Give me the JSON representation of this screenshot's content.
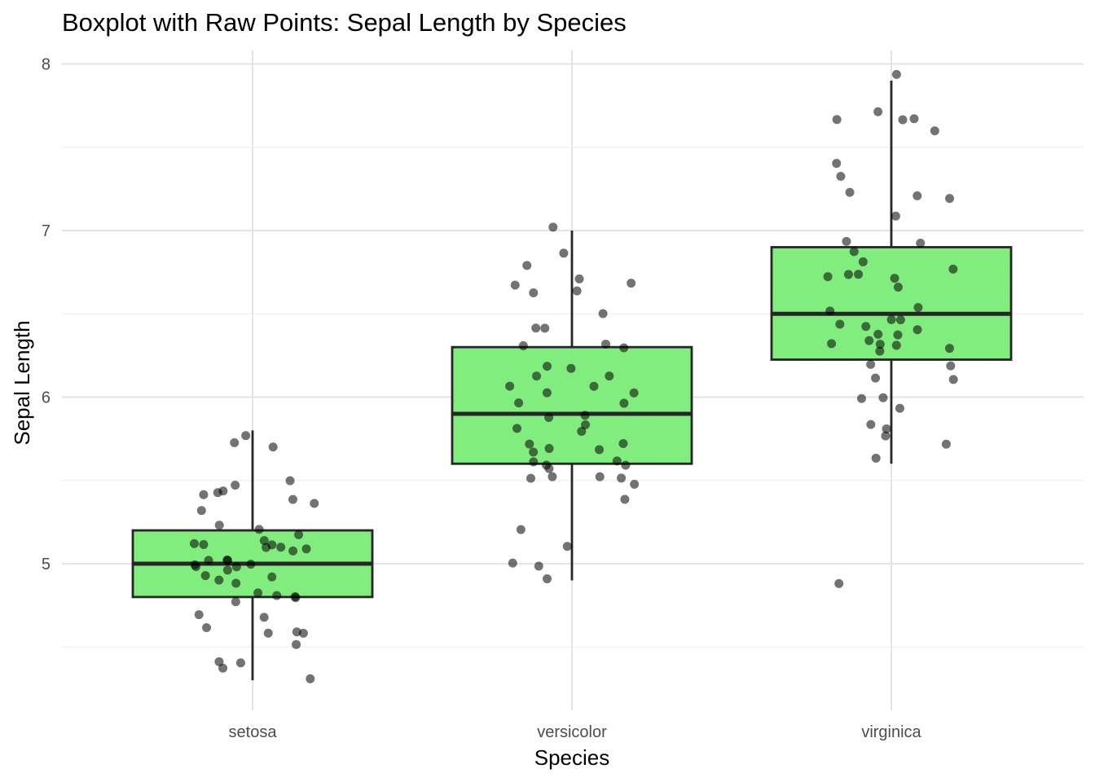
{
  "chart_data": {
    "type": "boxplot",
    "title": "Boxplot with Raw Points: Sepal Length by Species",
    "xlabel": "Species",
    "ylabel": "Sepal Length",
    "ylim": [
      4.3,
      7.9
    ],
    "yticks": [
      5,
      6,
      7,
      8
    ],
    "yticks_minor": [
      4.5,
      5.5,
      6.5,
      7.5
    ],
    "grid": true,
    "legend": "none",
    "categories": [
      "setosa",
      "versicolor",
      "virginica"
    ],
    "boxes": [
      {
        "category": "setosa",
        "whisker_low": 4.3,
        "q1": 4.8,
        "median": 5.0,
        "q3": 5.2,
        "whisker_high": 5.8
      },
      {
        "category": "versicolor",
        "whisker_low": 4.9,
        "q1": 5.6,
        "median": 5.9,
        "q3": 6.3,
        "whisker_high": 7.0
      },
      {
        "category": "virginica",
        "whisker_low": 5.6,
        "q1": 6.225,
        "median": 6.5,
        "q3": 6.9,
        "whisker_high": 7.9
      }
    ],
    "points": [
      {
        "category": "setosa",
        "values": [
          5.1,
          4.9,
          4.7,
          4.6,
          5.0,
          5.4,
          4.6,
          5.0,
          4.4,
          4.9,
          5.4,
          4.8,
          4.8,
          4.3,
          5.8,
          5.7,
          5.4,
          5.1,
          5.7,
          5.1,
          5.4,
          5.1,
          4.6,
          5.1,
          4.8,
          5.0,
          5.0,
          5.2,
          5.2,
          4.7,
          4.8,
          5.4,
          5.2,
          5.5,
          4.9,
          5.0,
          5.5,
          4.9,
          4.4,
          5.1,
          5.0,
          4.5,
          4.4,
          5.0,
          5.1,
          4.8,
          5.1,
          4.6,
          5.3,
          5.0
        ]
      },
      {
        "category": "versicolor",
        "values": [
          7.0,
          6.4,
          6.9,
          5.5,
          6.5,
          5.7,
          6.3,
          4.9,
          6.6,
          5.2,
          5.0,
          5.9,
          6.0,
          6.1,
          5.6,
          6.7,
          5.6,
          5.8,
          6.2,
          5.6,
          5.9,
          6.1,
          6.3,
          6.1,
          6.4,
          6.6,
          6.8,
          6.7,
          6.0,
          5.7,
          5.5,
          5.5,
          5.8,
          6.0,
          5.4,
          6.0,
          6.7,
          6.3,
          5.6,
          5.5,
          5.5,
          6.1,
          5.8,
          5.0,
          5.6,
          5.7,
          5.7,
          6.2,
          5.1,
          5.7
        ]
      },
      {
        "category": "virginica",
        "values": [
          6.3,
          5.8,
          7.1,
          6.3,
          6.5,
          7.6,
          4.9,
          7.3,
          6.7,
          7.2,
          6.5,
          6.4,
          6.8,
          5.7,
          5.8,
          6.4,
          6.5,
          7.7,
          7.7,
          6.0,
          6.9,
          5.6,
          7.7,
          6.3,
          6.7,
          7.2,
          6.2,
          6.1,
          6.4,
          7.2,
          7.4,
          7.9,
          6.4,
          6.3,
          6.1,
          7.7,
          6.3,
          6.4,
          6.0,
          6.9,
          6.7,
          6.9,
          5.8,
          6.8,
          6.7,
          6.7,
          6.3,
          6.5,
          6.2,
          5.9
        ]
      }
    ],
    "colors": {
      "box_fill": "#80ed7e",
      "box_stroke": "#262626",
      "point_fill": "#000000",
      "point_opacity": 0.55,
      "grid_major": "#e5e5e5",
      "grid_minor": "#efefef"
    }
  }
}
